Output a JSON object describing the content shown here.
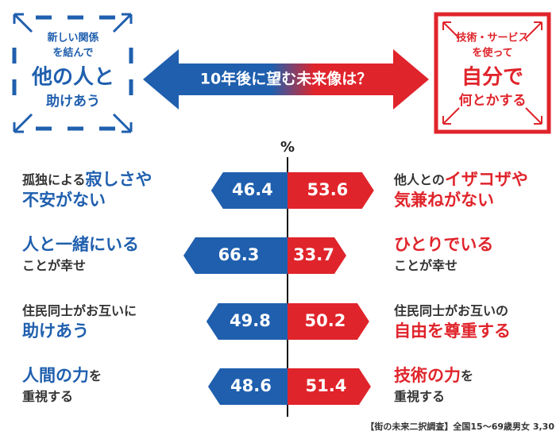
{
  "header": {
    "left_box": [
      "新しい関係",
      "を結んで",
      "他の人と",
      "助けあう"
    ],
    "question": "10年後に望む未来像は？",
    "right_box": [
      "技術・サービス",
      "を使って",
      "自分で",
      "何とかする"
    ]
  },
  "chart_data": {
    "type": "diverging_bar",
    "unit": "%",
    "left_color": "#1f5fae",
    "right_color": "#e0242b",
    "rows": [
      {
        "left_value": 46.4,
        "right_value": 53.6,
        "left_label": [
          [
            {
              "text": "孤独による",
              "emphasis": false
            },
            {
              "text": "寂しさや",
              "emphasis": true
            }
          ],
          [
            {
              "text": "不安がない",
              "emphasis": true
            }
          ]
        ],
        "right_label": [
          [
            {
              "text": "他人との",
              "emphasis": false
            },
            {
              "text": "イザコザや",
              "emphasis": true
            }
          ],
          [
            {
              "text": "気兼ねがない",
              "emphasis": true
            }
          ]
        ]
      },
      {
        "left_value": 66.3,
        "right_value": 33.7,
        "left_label": [
          [
            {
              "text": "人と一緒にいる",
              "emphasis": true
            }
          ],
          [
            {
              "text": "ことが幸せ",
              "emphasis": false
            }
          ]
        ],
        "right_label": [
          [
            {
              "text": "ひとりでいる",
              "emphasis": true
            }
          ],
          [
            {
              "text": "ことが幸せ",
              "emphasis": false
            }
          ]
        ]
      },
      {
        "left_value": 49.8,
        "right_value": 50.2,
        "left_label": [
          [
            {
              "text": "住民同士がお互いに",
              "emphasis": false
            }
          ],
          [
            {
              "text": "助けあう",
              "emphasis": true
            }
          ]
        ],
        "right_label": [
          [
            {
              "text": "住民同士がお互いの",
              "emphasis": false
            }
          ],
          [
            {
              "text": "自由を尊重する",
              "emphasis": true
            }
          ]
        ]
      },
      {
        "left_value": 48.6,
        "right_value": 51.4,
        "left_label": [
          [
            {
              "text": "人間の力",
              "emphasis": true
            },
            {
              "text": "を",
              "emphasis": false
            }
          ],
          [
            {
              "text": "重視する",
              "emphasis": false
            }
          ]
        ],
        "right_label": [
          [
            {
              "text": "技術の力",
              "emphasis": true
            },
            {
              "text": "を",
              "emphasis": false
            }
          ],
          [
            {
              "text": "重視する",
              "emphasis": false
            }
          ]
        ]
      }
    ],
    "footnote": "【街の未来二択調査】全国15～69歳男女 3,30"
  }
}
